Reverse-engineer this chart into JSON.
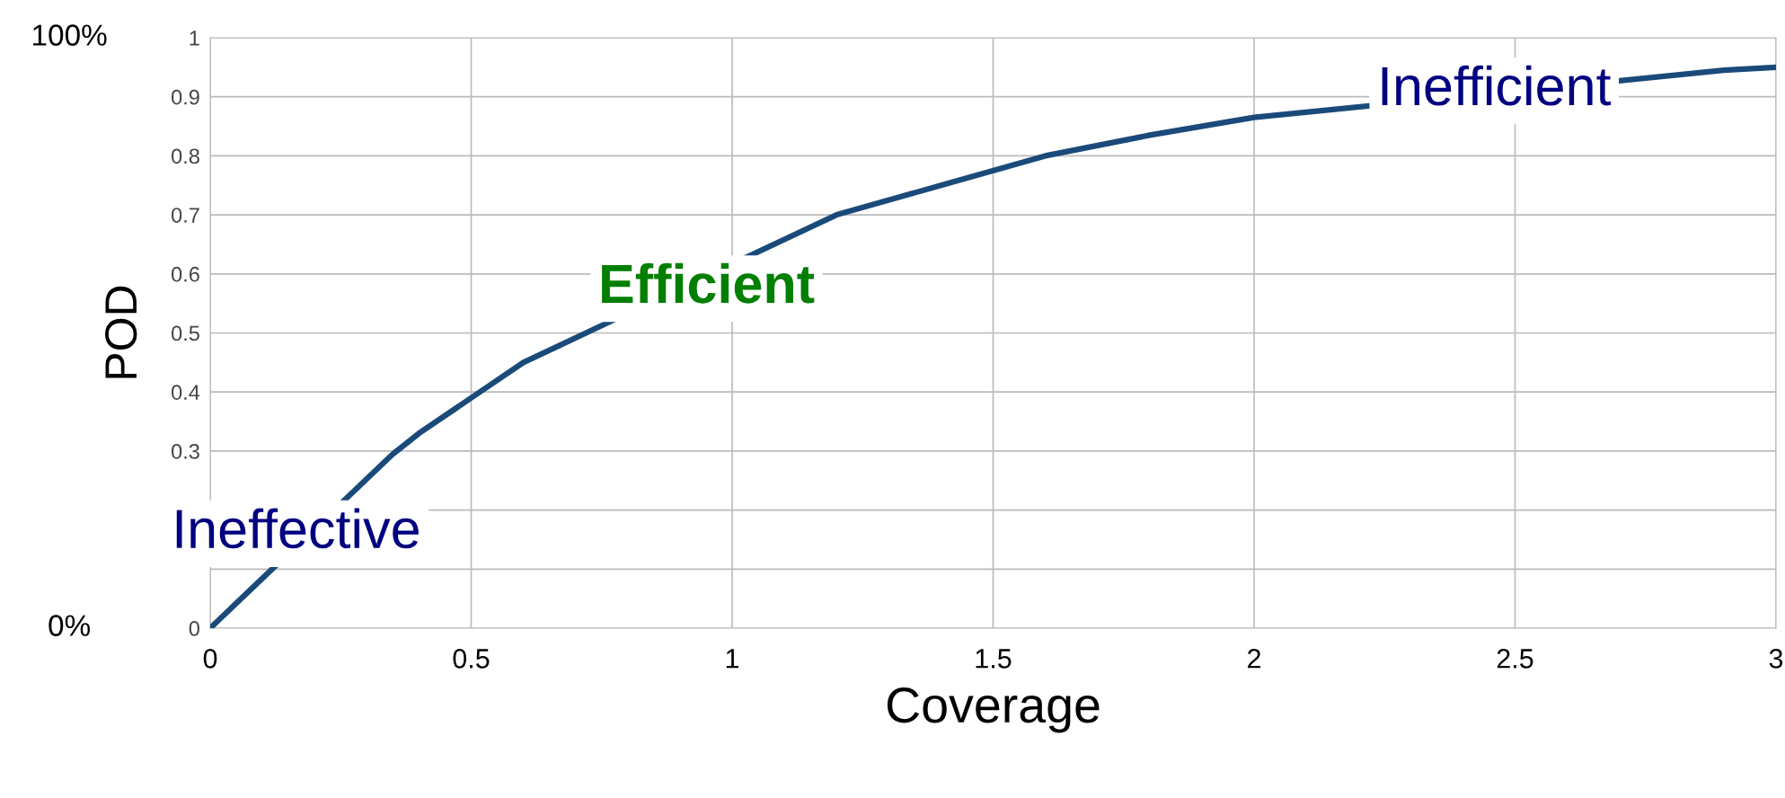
{
  "chart_data": {
    "type": "line",
    "xlabel": "Coverage",
    "ylabel": "POD",
    "x": [
      0,
      0.35,
      0.4,
      0.5,
      0.6,
      1.2,
      1.4,
      1.6,
      1.8,
      2.0,
      2.9,
      3.0
    ],
    "series": [
      {
        "color": "#1a4a7a",
        "values": [
          0,
          0.295,
          0.33,
          0.39,
          0.45,
          0.7,
          0.75,
          0.8,
          0.835,
          0.865,
          0.945,
          0.95
        ]
      }
    ],
    "xlim": [
      0,
      3
    ],
    "xticks": [
      0,
      0.5,
      1,
      1.5,
      2,
      2.5,
      3
    ],
    "ylim": [
      0,
      1
    ],
    "yticks": [
      0,
      {
        "value": 0.1,
        "label": null
      },
      {
        "value": 0.2,
        "label": null
      },
      0.3,
      0.4,
      0.5,
      0.6,
      0.7,
      0.8,
      0.9,
      1
    ],
    "grid": true,
    "marker": "none",
    "line_style": "solid",
    "annotations": [
      "Ineffective",
      "Efficient",
      "Inefficient",
      "100%",
      "0%"
    ]
  }
}
